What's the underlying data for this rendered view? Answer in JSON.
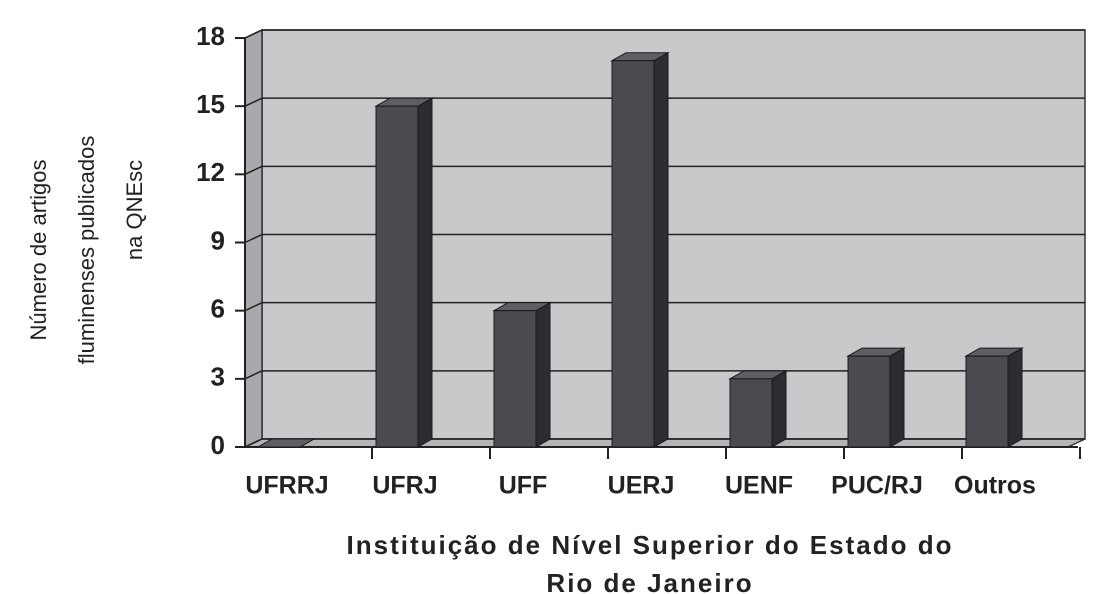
{
  "chart_data": {
    "type": "bar",
    "ylabel": [
      "Número de artigos",
      "fluminenses publicados",
      "na QNEsc"
    ],
    "xlabel": [
      "Instituição de Nível Superior do Estado do",
      "Rio de Janeiro"
    ],
    "categories": [
      "UFRRJ",
      "UFRJ",
      "UFF",
      "UERJ",
      "UENF",
      "PUC/RJ",
      "Outros"
    ],
    "values": [
      0,
      15,
      6,
      17,
      3,
      4,
      4
    ],
    "color": "#4a4a50",
    "ylim": [
      0,
      18
    ],
    "yticks": [
      0,
      3,
      6,
      9,
      12,
      15,
      18
    ],
    "grid": true
  }
}
